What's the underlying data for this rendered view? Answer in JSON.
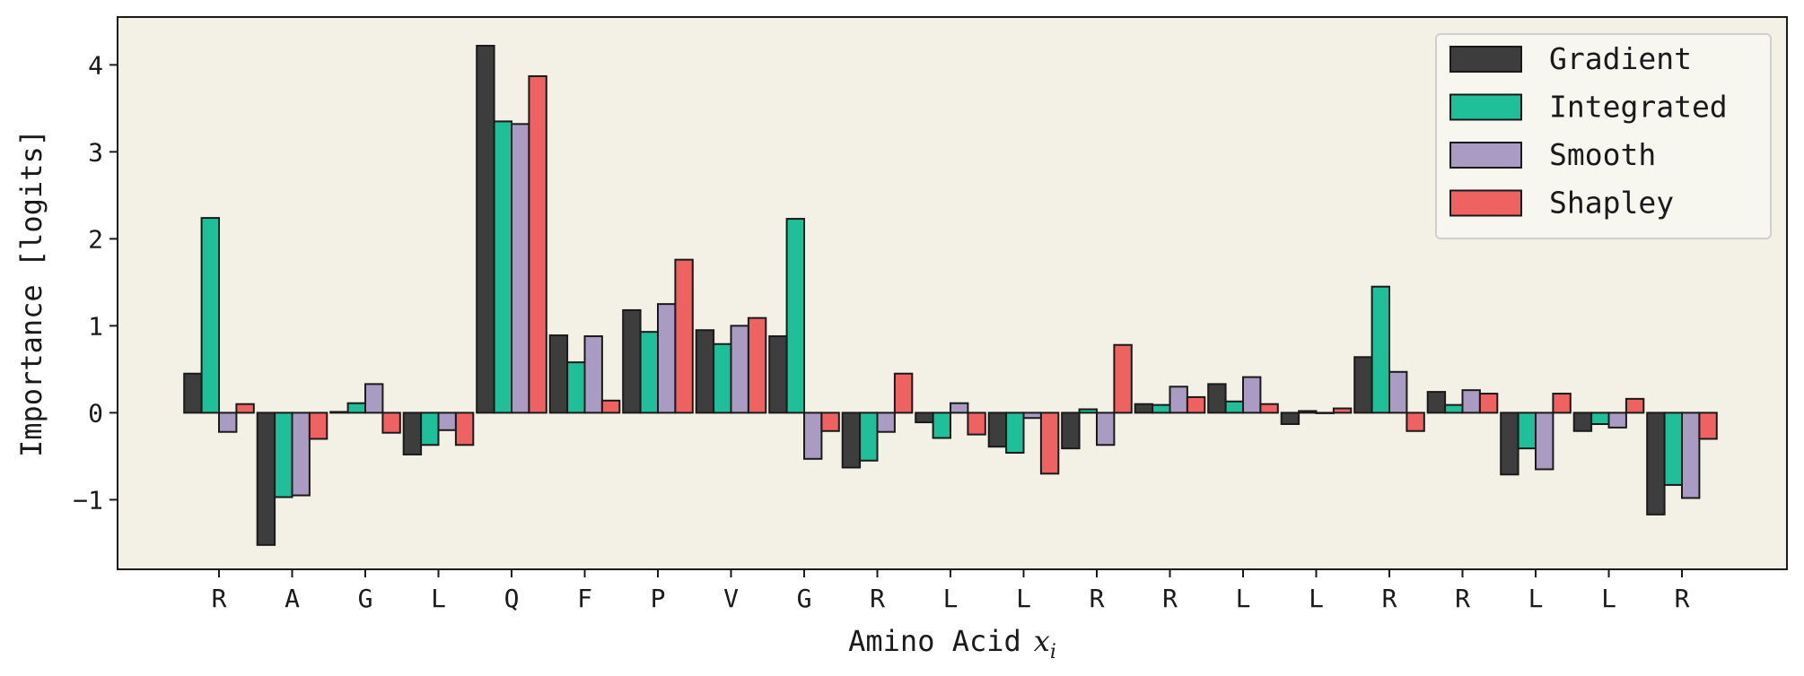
{
  "chart_data": {
    "type": "bar",
    "title": "",
    "xlabel": "Amino Acid",
    "xlabel_var": "x",
    "xlabel_sub": "i",
    "ylabel": "Importance [logits]",
    "ylim": [
      -1.8,
      4.55
    ],
    "yticks": [
      -1,
      0,
      1,
      2,
      3,
      4
    ],
    "ytick_labels": [
      "−1",
      "0",
      "1",
      "2",
      "3",
      "4"
    ],
    "grid": false,
    "legend_position": "top-right",
    "background": "#f3f1e6",
    "categories": [
      "R",
      "A",
      "G",
      "L",
      "Q",
      "F",
      "P",
      "V",
      "G",
      "R",
      "L",
      "L",
      "R",
      "R",
      "L",
      "L",
      "R",
      "R",
      "L",
      "L",
      "R"
    ],
    "series": [
      {
        "name": "Gradient",
        "color": "#3d3d3d",
        "values": [
          0.45,
          -1.52,
          0.01,
          -0.48,
          4.22,
          0.89,
          1.18,
          0.95,
          0.88,
          -0.63,
          -0.11,
          -0.39,
          -0.41,
          0.1,
          0.33,
          -0.13,
          0.64,
          0.24,
          -0.71,
          -0.21,
          -1.17
        ]
      },
      {
        "name": "Integrated",
        "color": "#1fbf9a",
        "values": [
          2.24,
          -0.97,
          0.11,
          -0.37,
          3.35,
          0.58,
          0.93,
          0.79,
          2.23,
          -0.55,
          -0.29,
          -0.46,
          0.04,
          0.09,
          0.13,
          0.02,
          1.45,
          0.09,
          -0.41,
          -0.13,
          -0.83
        ]
      },
      {
        "name": "Smooth",
        "color": "#a99bc1",
        "values": [
          -0.22,
          -0.95,
          0.33,
          -0.2,
          3.32,
          0.88,
          1.25,
          1.0,
          -0.53,
          -0.22,
          0.11,
          -0.06,
          -0.37,
          0.3,
          0.41,
          0.0,
          0.47,
          0.26,
          -0.65,
          -0.17,
          -0.98
        ]
      },
      {
        "name": "Shapley",
        "color": "#ef6262",
        "values": [
          0.1,
          -0.3,
          -0.23,
          -0.37,
          3.87,
          0.14,
          1.76,
          1.09,
          -0.21,
          0.45,
          -0.25,
          -0.7,
          0.78,
          0.18,
          0.1,
          0.05,
          -0.21,
          0.22,
          0.22,
          0.16,
          -0.3
        ]
      }
    ]
  }
}
